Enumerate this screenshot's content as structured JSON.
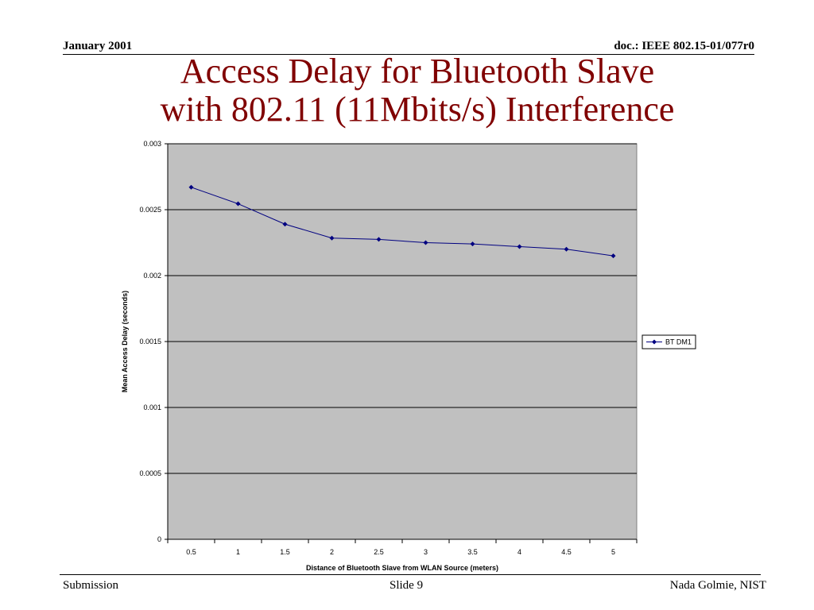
{
  "header": {
    "date": "January 2001",
    "doc_id": "doc.: IEEE 802.15-01/077r0"
  },
  "slide_title": {
    "line1": "Access Delay for Bluetooth Slave",
    "line2": "with 802.11 (11Mbits/s) Interference"
  },
  "footer": {
    "left": "Submission",
    "center": "Slide 9",
    "right": "Nada Golmie, NIST"
  },
  "colors": {
    "title": "#800000",
    "plot_background": "#c0c0c0",
    "series_line": "#000080"
  },
  "chart_data": {
    "type": "line",
    "title": "",
    "xlabel": "Distance of Bluetooth Slave from WLAN Source (meters)",
    "ylabel": "Mean Access Delay (seconds)",
    "x": [
      0.5,
      1,
      1.5,
      2,
      2.5,
      3,
      3.5,
      4,
      4.5,
      5
    ],
    "x_tick_labels": [
      "0.5",
      "1",
      "1.5",
      "2",
      "2.5",
      "3",
      "3.5",
      "4",
      "4.5",
      "5"
    ],
    "ylim": [
      0,
      0.003
    ],
    "y_ticks": [
      0,
      0.0005,
      0.001,
      0.0015,
      0.002,
      0.0025,
      0.003
    ],
    "y_tick_labels": [
      "0",
      "0.0005",
      "0.001",
      "0.0015",
      "0.002",
      "0.0025",
      "0.003"
    ],
    "grid": "horizontal",
    "legend_position": "right",
    "series": [
      {
        "name": "BT DM1",
        "marker": "diamond",
        "values": [
          0.00267,
          0.002545,
          0.00239,
          0.002285,
          0.002275,
          0.00225,
          0.00224,
          0.00222,
          0.0022,
          0.00215
        ]
      }
    ]
  }
}
